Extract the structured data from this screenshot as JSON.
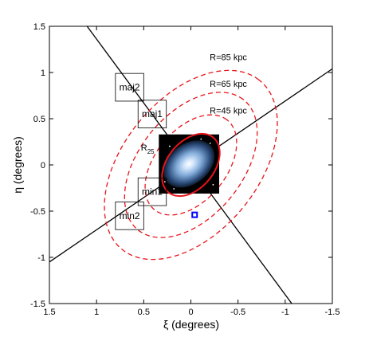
{
  "chart_data": {
    "type": "scatter",
    "xlabel": "ξ (degrees)",
    "ylabel": "η (degrees)",
    "xlim": [
      1.5,
      -1.5
    ],
    "ylim": [
      -1.5,
      1.5
    ],
    "xticks": [
      {
        "value": 1.5,
        "label": "1.5"
      },
      {
        "value": 1,
        "label": "1"
      },
      {
        "value": 0.5,
        "label": "0.5"
      },
      {
        "value": 0,
        "label": "0"
      },
      {
        "value": -0.5,
        "label": "-0.5"
      },
      {
        "value": -1,
        "label": "-1"
      },
      {
        "value": -1.5,
        "label": "-1.5"
      }
    ],
    "yticks": [
      {
        "value": 1.5,
        "label": "1.5"
      },
      {
        "value": 1,
        "label": "1"
      },
      {
        "value": 0.5,
        "label": "0.5"
      },
      {
        "value": 0,
        "label": "0"
      },
      {
        "value": -0.5,
        "label": "-0.5"
      },
      {
        "value": -1,
        "label": "-1"
      },
      {
        "value": -1.5,
        "label": "-1.5"
      }
    ],
    "grid": false,
    "position_angle_deg": 38,
    "axis_lines": [
      {
        "name": "major axis",
        "color": "#000000",
        "points": [
          [
            1.1,
            1.5
          ],
          [
            -1.07,
            -1.5
          ]
        ]
      },
      {
        "name": "minor axis",
        "color": "#000000",
        "points": [
          [
            1.5,
            -1.05
          ],
          [
            -1.5,
            1.04
          ]
        ]
      }
    ],
    "ellipses": [
      {
        "label": "R=85 kpc",
        "center": [
          0,
          0
        ],
        "semi_major_deg": 1.17,
        "semi_minor_deg": 0.72,
        "style": "dashed",
        "color": "#e8141c"
      },
      {
        "label": "R=65 kpc",
        "center": [
          0,
          0
        ],
        "semi_major_deg": 0.9,
        "semi_minor_deg": 0.55,
        "style": "dashed",
        "color": "#e8141c"
      },
      {
        "label": "R=45 kpc",
        "center": [
          0,
          0
        ],
        "semi_major_deg": 0.62,
        "semi_minor_deg": 0.38,
        "style": "dashed",
        "color": "#e8141c"
      },
      {
        "label": "R25",
        "center": [
          0,
          0
        ],
        "semi_major_deg": 0.38,
        "semi_minor_deg": 0.25,
        "style": "solid",
        "color": "#e8141c"
      }
    ],
    "ellipse_labels": [
      {
        "text": "R=85 kpc",
        "x": -0.2,
        "y": 1.17
      },
      {
        "text": "R=65 kpc",
        "x": -0.2,
        "y": 0.88
      },
      {
        "text": "R=45 kpc",
        "x": -0.2,
        "y": 0.59
      }
    ],
    "r25_label": {
      "main": "R",
      "sub": "25",
      "x": 0.53,
      "y": 0.19
    },
    "fields": [
      {
        "label": "maj2",
        "x": 0.65,
        "y": 0.84
      },
      {
        "label": "maj1",
        "x": 0.41,
        "y": 0.55
      },
      {
        "label": "min1",
        "x": 0.41,
        "y": -0.29
      },
      {
        "label": "min2",
        "x": 0.65,
        "y": -0.55
      }
    ],
    "field_size_deg": 0.3,
    "galaxy_image": {
      "center": [
        0.02,
        0.01
      ],
      "size_deg": 0.64,
      "colors": [
        "#ffffff",
        "#cfe4fb",
        "#7fa8d6",
        "#2a4a78",
        "#000000"
      ]
    },
    "marker": {
      "x": -0.04,
      "y": -0.54,
      "shape": "square",
      "color": "#0000ff"
    }
  }
}
